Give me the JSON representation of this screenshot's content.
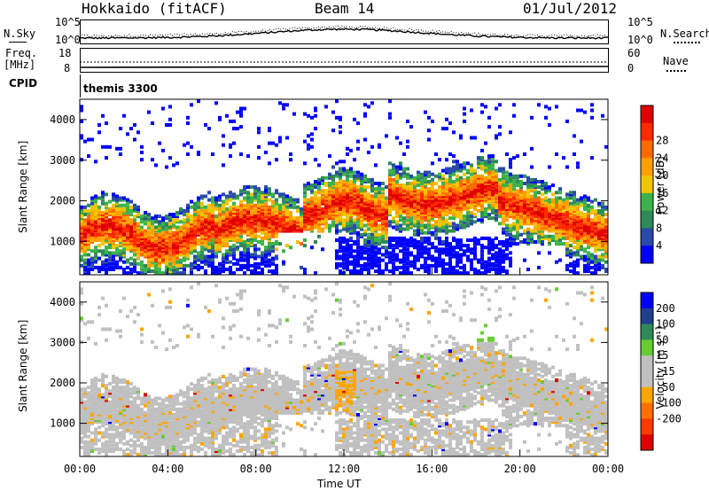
{
  "header": {
    "station": "Hokkaido (fitACF)",
    "beam": "Beam 14",
    "date": "01/Jul/2012"
  },
  "top_panel": {
    "nsky_label": "N.Sky",
    "nsearch_label": "N.Search",
    "noise_ticks_left": [
      "10^5",
      "10^0"
    ],
    "noise_ticks_right": [
      "10^5",
      "10^0"
    ],
    "freq_label_top": "Freq.",
    "freq_label_unit": "[MHz]",
    "freq_ticks": [
      "18",
      "8"
    ],
    "nave_label": "Nave",
    "nave_ticks": [
      "60",
      "0"
    ],
    "cpid_label": "CPID",
    "cpid_value": "themis 3300"
  },
  "colors": {
    "power": [
      "#0000ff",
      "#2a4aa8",
      "#2e8b57",
      "#3cb34a",
      "#f0c400",
      "#ffa000",
      "#ff6a00",
      "#ff2a00",
      "#e00000"
    ],
    "velocity": [
      "#0000ff",
      "#1f3f8f",
      "#2e8b57",
      "#66cc33",
      "#c0c0c0",
      "#c0c0c0",
      "#ffa500",
      "#ff7000",
      "#ff3a00",
      "#e00000"
    ],
    "ground_scatter": "#c0c0c0"
  },
  "chart_data": [
    {
      "type": "heatmap",
      "name": "power",
      "ylabel": "Slant Range [km]",
      "ytick_labels": [
        "1000",
        "2000",
        "3000",
        "4000"
      ],
      "yrange": [
        180,
        4500
      ],
      "xrange_hours": [
        0,
        24
      ],
      "colorbar_label": "Power [dB]",
      "colorbar_ticks": [
        "4",
        "8",
        "12",
        "16",
        "20",
        "24",
        "28"
      ],
      "colorbar_range": [
        0,
        30
      ]
    },
    {
      "type": "heatmap",
      "name": "velocity",
      "ylabel": "Slant Range [km]",
      "ytick_labels": [
        "1000",
        "2000",
        "3000",
        "4000"
      ],
      "yrange": [
        180,
        4500
      ],
      "xrange_hours": [
        0,
        24
      ],
      "xlabel": "Time UT",
      "xtick_labels": [
        "00:00",
        "04:00",
        "08:00",
        "12:00",
        "16:00",
        "20:00",
        "00:00"
      ],
      "colorbar_label": "Velocity [m s⁻¹]",
      "colorbar_ticks": [
        "200",
        "100",
        "50",
        "15",
        "-15",
        "-50",
        "-100",
        "-200"
      ],
      "colorbar_range": [
        -250,
        250
      ]
    }
  ]
}
